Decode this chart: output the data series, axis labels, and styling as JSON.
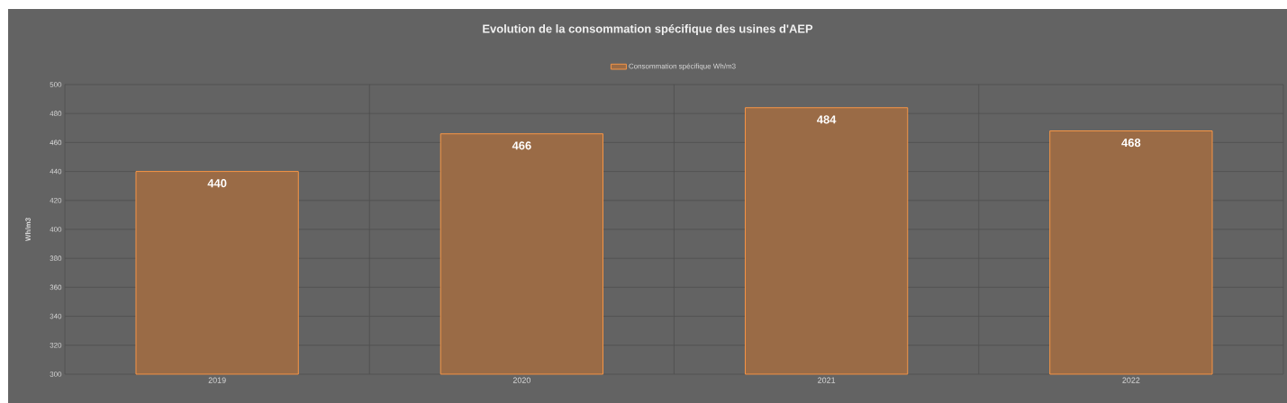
{
  "chart_data": {
    "type": "bar",
    "title": "Evolution de la consommation spécifique des usines d'AEP",
    "ylabel": "Wh/m3",
    "categories": [
      "2019",
      "2020",
      "2021",
      "2022"
    ],
    "series": [
      {
        "name": "Consommation spécifique Wh/m3",
        "color": "#9a6b46",
        "values": [
          440,
          466,
          484,
          468
        ]
      }
    ],
    "ylim": [
      300,
      500
    ],
    "yticks": [
      300,
      320,
      340,
      360,
      380,
      400,
      420,
      440,
      460,
      480,
      500
    ],
    "grid": true,
    "legend": "top",
    "data_labels": true
  }
}
